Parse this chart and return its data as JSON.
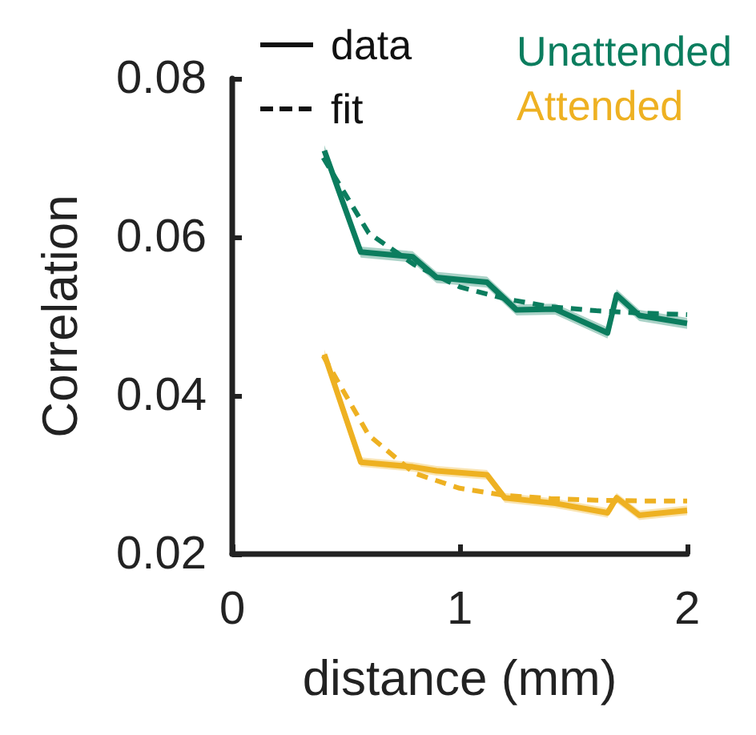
{
  "chart_data": {
    "type": "line",
    "xlabel": "distance (mm)",
    "ylabel": "Correlation",
    "xlim": [
      0,
      2
    ],
    "xticks": [
      0,
      1,
      2
    ],
    "ylim": [
      0.02,
      0.08
    ],
    "yticks": [
      0.02,
      0.04,
      0.06,
      0.08
    ],
    "grid": false,
    "legend": "top right",
    "marker": "none",
    "annotations": [
      "data",
      "fit"
    ],
    "series": [
      {
        "name": "Unattended",
        "color": "#0b7d5e",
        "line_style": "solid",
        "x": [
          0.405,
          0.565,
          0.793,
          0.898,
          1.12,
          1.25,
          1.42,
          1.65,
          1.69,
          1.79,
          2.0
        ],
        "values": [
          0.0709,
          0.0581,
          0.0575,
          0.0549,
          0.0543,
          0.0508,
          0.0509,
          0.0479,
          0.0527,
          0.0501,
          0.0491
        ],
        "lower": [
          0.0702,
          0.0574,
          0.0568,
          0.0542,
          0.0536,
          0.0501,
          0.0502,
          0.0472,
          0.052,
          0.0494,
          0.0484
        ],
        "upper": [
          0.0716,
          0.0588,
          0.0582,
          0.0556,
          0.055,
          0.0515,
          0.0516,
          0.0486,
          0.0534,
          0.0508,
          0.0498
        ]
      },
      {
        "color": "#0b7d5e",
        "line_style": "dashed",
        "x": [
          0.4,
          0.6,
          0.8,
          1.0,
          1.2,
          1.4,
          1.6,
          1.8,
          2.0
        ],
        "values": [
          0.07,
          0.0605,
          0.0565,
          0.0537,
          0.0522,
          0.0512,
          0.0507,
          0.0504,
          0.0502
        ]
      },
      {
        "name": "Attended",
        "color": "#eeb122",
        "line_style": "solid",
        "x": [
          0.405,
          0.565,
          0.793,
          0.898,
          1.12,
          1.198,
          1.42,
          1.65,
          1.69,
          1.79,
          2.0
        ],
        "values": [
          0.0452,
          0.0316,
          0.031,
          0.0305,
          0.03,
          0.0271,
          0.0264,
          0.0252,
          0.0271,
          0.0249,
          0.0255
        ],
        "lower": [
          0.0446,
          0.031,
          0.0304,
          0.0299,
          0.0294,
          0.0265,
          0.0258,
          0.0246,
          0.0265,
          0.0243,
          0.0249
        ],
        "upper": [
          0.0458,
          0.0322,
          0.0316,
          0.0311,
          0.0306,
          0.0277,
          0.027,
          0.0258,
          0.0277,
          0.0255,
          0.0261
        ]
      },
      {
        "color": "#eeb122",
        "line_style": "dashed",
        "x": [
          0.4,
          0.6,
          0.8,
          1.0,
          1.2,
          1.4,
          1.6,
          1.8,
          2.0
        ],
        "values": [
          0.045,
          0.035,
          0.0302,
          0.0283,
          0.0274,
          0.027,
          0.0268,
          0.0267,
          0.0267
        ]
      }
    ]
  }
}
